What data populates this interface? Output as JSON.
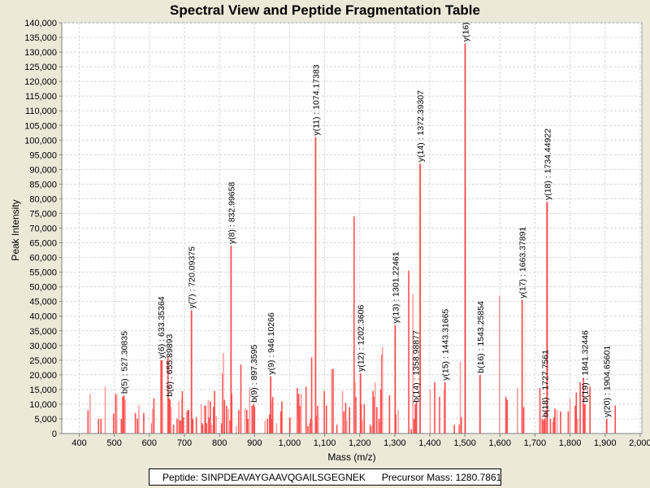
{
  "chart_data": {
    "type": "bar",
    "title": "Spectral View and Peptide Fragmentation Table",
    "xlabel": "Mass (m/z)",
    "ylabel": "Peak Intensity",
    "xlim": [
      350,
      2005
    ],
    "ylim": [
      0,
      140000
    ],
    "xticks": [
      400,
      500,
      600,
      700,
      800,
      900,
      1000,
      1100,
      1200,
      1300,
      1400,
      1500,
      1600,
      1700,
      1800,
      1900,
      2000
    ],
    "xtick_labels": [
      "400",
      "500",
      "600",
      "700",
      "800",
      "900",
      "1,000",
      "1,100",
      "1,200",
      "1,300",
      "1,400",
      "1,500",
      "1,600",
      "1,700",
      "1,800",
      "1,900",
      "2,000"
    ],
    "yticks": [
      0,
      5000,
      10000,
      15000,
      20000,
      25000,
      30000,
      35000,
      40000,
      45000,
      50000,
      55000,
      60000,
      65000,
      70000,
      75000,
      80000,
      85000,
      90000,
      95000,
      100000,
      105000,
      110000,
      115000,
      120000,
      125000,
      130000,
      135000,
      140000
    ],
    "ytick_labels": [
      "0",
      "5,000",
      "10,000",
      "15,000",
      "20,000",
      "25,000",
      "30,000",
      "35,000",
      "40,000",
      "45,000",
      "50,000",
      "55,000",
      "60,000",
      "65,000",
      "70,000",
      "75,000",
      "80,000",
      "85,000",
      "90,000",
      "95,000",
      "100,000",
      "105,000",
      "110,000",
      "115,000",
      "120,000",
      "125,000",
      "130,000",
      "135,000",
      "140,000"
    ],
    "grid": true,
    "color": "#ff4d4d",
    "annotated_peaks": [
      {
        "label": "b(5) : 527.30835",
        "mz": 527.3,
        "intensity": 13000
      },
      {
        "label": "y(6) : 633.35364",
        "mz": 633.35,
        "intensity": 25000
      },
      {
        "label": "b(6) : 655.89893",
        "mz": 655.9,
        "intensity": 12000
      },
      {
        "label": "y(7) : 720.09375",
        "mz": 720.1,
        "intensity": 42000
      },
      {
        "label": "y(8) : 832.99658",
        "mz": 833.0,
        "intensity": 64000
      },
      {
        "label": "b(9) : 897.3595",
        "mz": 897.4,
        "intensity": 10000
      },
      {
        "label": "y(9) : 946.10266",
        "mz": 946.1,
        "intensity": 19500
      },
      {
        "label": "y(11) : 1074.17383",
        "mz": 1074.2,
        "intensity": 101000
      },
      {
        "label": "y(12) : 1202.3606",
        "mz": 1202.4,
        "intensity": 20500
      },
      {
        "label": "y(13) : 1301.22461",
        "mz": 1301.2,
        "intensity": 37000
      },
      {
        "label": "b(14) : 1358.98877",
        "mz": 1359.0,
        "intensity": 10000
      },
      {
        "label": "y(14) : 1372.39307",
        "mz": 1372.4,
        "intensity": 92000
      },
      {
        "label": "y(15) : 1443.31665",
        "mz": 1443.3,
        "intensity": 17500
      },
      {
        "label": "y(16)",
        "mz": 1500.8,
        "intensity": 133000
      },
      {
        "label": "b(16) : 1543.25854",
        "mz": 1543.3,
        "intensity": 20000
      },
      {
        "label": "y(17) : 1663.37891",
        "mz": 1663.4,
        "intensity": 45500
      },
      {
        "label": "y(18) : 1734.44922",
        "mz": 1734.4,
        "intensity": 79000
      },
      {
        "label": "b(18) : 1727.7561",
        "mz": 1727.8,
        "intensity": 5000
      },
      {
        "label": "b(19) : 1841.32446",
        "mz": 1841.3,
        "intensity": 10000
      },
      {
        "label": "y(20) : 1904.65601",
        "mz": 1904.7,
        "intensity": 5000
      }
    ],
    "peaks": [
      [
        425,
        8000
      ],
      [
        431,
        13500
      ],
      [
        455,
        5000
      ],
      [
        462,
        5000
      ],
      [
        474,
        16000
      ],
      [
        498,
        6800
      ],
      [
        504,
        13500
      ],
      [
        507,
        13000
      ],
      [
        520,
        5000
      ],
      [
        524,
        12500
      ],
      [
        531,
        11500
      ],
      [
        560,
        7000
      ],
      [
        566,
        5000
      ],
      [
        570,
        9500
      ],
      [
        584,
        7000
      ],
      [
        607,
        3500
      ],
      [
        609,
        8500
      ],
      [
        613,
        12000
      ],
      [
        636,
        25000
      ],
      [
        638,
        10500
      ],
      [
        653,
        26000
      ],
      [
        659,
        11500
      ],
      [
        662,
        9000
      ],
      [
        669,
        3000
      ],
      [
        679,
        5000
      ],
      [
        684,
        11000
      ],
      [
        686,
        4500
      ],
      [
        690,
        4500
      ],
      [
        693,
        12000
      ],
      [
        694,
        14500
      ],
      [
        697,
        5500
      ],
      [
        706,
        7500
      ],
      [
        710,
        8000
      ],
      [
        712,
        8000
      ],
      [
        721,
        7000
      ],
      [
        724,
        5000
      ],
      [
        734,
        5500
      ],
      [
        748,
        10000
      ],
      [
        750,
        3500
      ],
      [
        752,
        3000
      ],
      [
        757,
        9500
      ],
      [
        760,
        9500
      ],
      [
        763,
        3500
      ],
      [
        768,
        11500
      ],
      [
        770,
        5500
      ],
      [
        774,
        11000
      ],
      [
        778,
        3000
      ],
      [
        783,
        9000
      ],
      [
        786,
        14500
      ],
      [
        791,
        6000
      ],
      [
        806,
        3500
      ],
      [
        809,
        20500
      ],
      [
        811,
        27500
      ],
      [
        814,
        11500
      ],
      [
        820,
        9500
      ],
      [
        825,
        8500
      ],
      [
        830,
        4500
      ],
      [
        835,
        13500
      ],
      [
        848,
        2500
      ],
      [
        855,
        8000
      ],
      [
        861,
        23500
      ],
      [
        873,
        8500
      ],
      [
        878,
        8000
      ],
      [
        881,
        5000
      ],
      [
        886,
        15500
      ],
      [
        893,
        9500
      ],
      [
        900,
        9000
      ],
      [
        930,
        4500
      ],
      [
        937,
        5000
      ],
      [
        943,
        6500
      ],
      [
        948,
        11000
      ],
      [
        949,
        5000
      ],
      [
        952,
        12500
      ],
      [
        963,
        3500
      ],
      [
        975,
        7500
      ],
      [
        978,
        11000
      ],
      [
        1000,
        5500
      ],
      [
        1001,
        5500
      ],
      [
        1022,
        15500
      ],
      [
        1024,
        5000
      ],
      [
        1026,
        13500
      ],
      [
        1029,
        9500
      ],
      [
        1033,
        13500
      ],
      [
        1047,
        16000
      ],
      [
        1052,
        2500
      ],
      [
        1056,
        3500
      ],
      [
        1060,
        5000
      ],
      [
        1063,
        26000
      ],
      [
        1065,
        4500
      ],
      [
        1076,
        6000
      ],
      [
        1080,
        9500
      ],
      [
        1082,
        6500
      ],
      [
        1099,
        14500
      ],
      [
        1105,
        9500
      ],
      [
        1120,
        22000
      ],
      [
        1124,
        22000
      ],
      [
        1135,
        3000
      ],
      [
        1151,
        14500
      ],
      [
        1155,
        7500
      ],
      [
        1160,
        10500
      ],
      [
        1163,
        4500
      ],
      [
        1171,
        9000
      ],
      [
        1184,
        74000
      ],
      [
        1187,
        17500
      ],
      [
        1189,
        12500
      ],
      [
        1204,
        10000
      ],
      [
        1208,
        4500
      ],
      [
        1213,
        10000
      ],
      [
        1230,
        3000
      ],
      [
        1234,
        2500
      ],
      [
        1238,
        14500
      ],
      [
        1242,
        12500
      ],
      [
        1244,
        17500
      ],
      [
        1249,
        9000
      ],
      [
        1255,
        5000
      ],
      [
        1258,
        4000
      ],
      [
        1260,
        15000
      ],
      [
        1263,
        27000
      ],
      [
        1265,
        29500
      ],
      [
        1285,
        13000
      ],
      [
        1303,
        6500
      ],
      [
        1310,
        8000
      ],
      [
        1340,
        55500
      ],
      [
        1347,
        1500
      ],
      [
        1352,
        47500
      ],
      [
        1355,
        5000
      ],
      [
        1362,
        11000
      ],
      [
        1401,
        15000
      ],
      [
        1414,
        17500
      ],
      [
        1428,
        12500
      ],
      [
        1441,
        15000
      ],
      [
        1470,
        3000
      ],
      [
        1484,
        3000
      ],
      [
        1487,
        24500
      ],
      [
        1490,
        5500
      ],
      [
        1501,
        84500
      ],
      [
        1599,
        47000
      ],
      [
        1617,
        12500
      ],
      [
        1621,
        11500
      ],
      [
        1650,
        15500
      ],
      [
        1668,
        9000
      ],
      [
        1714,
        15500
      ],
      [
        1716,
        11000
      ],
      [
        1721,
        5000
      ],
      [
        1725,
        4500
      ],
      [
        1730,
        8000
      ],
      [
        1735,
        79000
      ],
      [
        1744,
        5000
      ],
      [
        1751,
        4000
      ],
      [
        1754,
        5500
      ],
      [
        1757,
        8500
      ],
      [
        1763,
        8000
      ],
      [
        1773,
        7500
      ],
      [
        1795,
        7500
      ],
      [
        1800,
        12000
      ],
      [
        1815,
        9500
      ],
      [
        1818,
        14000
      ],
      [
        1822,
        5000
      ],
      [
        1829,
        17500
      ],
      [
        1838,
        19000
      ],
      [
        1844,
        10000
      ],
      [
        1857,
        16000
      ],
      [
        1929,
        9500
      ]
    ]
  },
  "legend": {
    "peptide": "Peptide: SINPDEAVAYGAAVQGAILSGEGNEK",
    "precursor": "Precursor Mass: 1280.7861"
  }
}
